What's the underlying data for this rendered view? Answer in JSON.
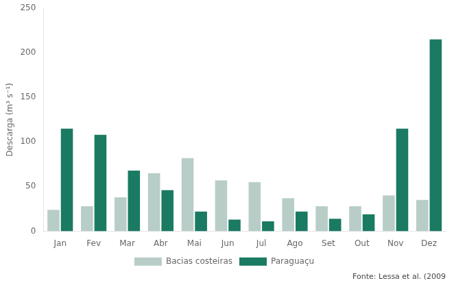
{
  "chart_data": {
    "type": "bar",
    "categories": [
      "Jan",
      "Fev",
      "Mar",
      "Abr",
      "Mai",
      "Jun",
      "Jul",
      "Ago",
      "Set",
      "Out",
      "Nov",
      "Dez"
    ],
    "series": [
      {
        "name": "Bacias costeiras",
        "color": "#b8cdc8",
        "values": [
          24,
          28,
          38,
          65,
          82,
          57,
          55,
          37,
          28,
          28,
          40,
          35
        ]
      },
      {
        "name": "Paraguaçu",
        "color": "#1a7a62",
        "values": [
          115,
          108,
          68,
          46,
          22,
          13,
          11,
          22,
          14,
          19,
          115,
          215
        ]
      }
    ],
    "y_label": "Descarga (m³ s⁻¹)",
    "ylim": [
      0,
      250
    ],
    "yticks": [
      0,
      50,
      100,
      150,
      200,
      250
    ],
    "grid": false,
    "legend": "bottom",
    "annotation": "Fonte: Lessa et al. (2009"
  }
}
